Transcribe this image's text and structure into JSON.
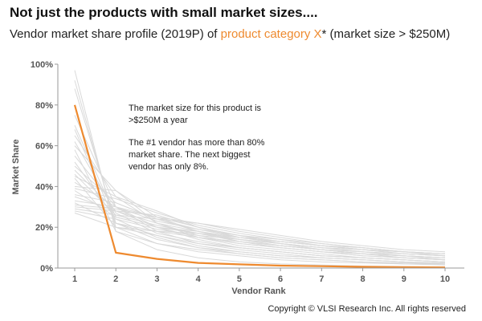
{
  "header": {
    "headline": "Not just the products with small market sizes....",
    "subtitle_pre": "Vendor market share profile (2019P) of ",
    "subtitle_highlight": "product category X",
    "subtitle_post": "* (market size > $250M)"
  },
  "colors": {
    "highlight": "#ee8a2f",
    "background_lines": "#d9d9d9",
    "axis": "#999999",
    "tick_text": "#555555"
  },
  "annotations": {
    "market_size_note": "The market size for this product is >$250M a year",
    "vendor_note": "The #1 vendor has more than 80% market share. The next biggest vendor has only 8%."
  },
  "footer": {
    "copyright": "Copyright © VLSI Research Inc. All rights reserved"
  },
  "chart_data": {
    "type": "line",
    "xlabel": "Vendor Rank",
    "ylabel": "Market Share",
    "x": [
      1,
      2,
      3,
      4,
      5,
      6,
      7,
      8,
      9,
      10
    ],
    "x_tick_labels": [
      "1",
      "2",
      "3",
      "4",
      "5",
      "6",
      "7",
      "8",
      "9",
      "10"
    ],
    "ylim": [
      0,
      100
    ],
    "y_ticks": [
      0,
      20,
      40,
      60,
      80,
      100
    ],
    "y_tick_labels": [
      "0%",
      "20%",
      "40%",
      "60%",
      "80%",
      "100%"
    ],
    "highlighted_series": {
      "values": [
        80,
        7.5,
        4.5,
        2.5,
        1.8,
        1.2,
        0.9,
        0.6,
        0.4,
        0.3
      ]
    },
    "background_series": [
      {
        "values": [
          97,
          18,
          9,
          5,
          3,
          2,
          1.5,
          1,
          0.8,
          0.5
        ]
      },
      {
        "values": [
          92,
          20,
          12,
          8,
          6,
          4,
          3,
          2.5,
          2,
          1.5
        ]
      },
      {
        "values": [
          88,
          22,
          14,
          10,
          7,
          5,
          4,
          3,
          2.5,
          2
        ]
      },
      {
        "values": [
          75,
          30,
          18,
          12,
          9,
          7,
          5,
          4,
          3,
          2.5
        ]
      },
      {
        "values": [
          70,
          25,
          20,
          14,
          10,
          8,
          6,
          5,
          4,
          3
        ]
      },
      {
        "values": [
          65,
          35,
          22,
          15,
          11,
          9,
          7,
          5,
          4,
          3
        ]
      },
      {
        "values": [
          60,
          38,
          25,
          18,
          13,
          10,
          8,
          6,
          5,
          4
        ]
      },
      {
        "values": [
          55,
          30,
          20,
          15,
          12,
          10,
          8,
          7,
          5,
          4
        ]
      },
      {
        "values": [
          50,
          32,
          24,
          18,
          14,
          11,
          9,
          7,
          6,
          5
        ]
      },
      {
        "values": [
          48,
          28,
          22,
          16,
          12,
          10,
          8,
          6,
          5,
          4
        ]
      },
      {
        "values": [
          45,
          35,
          28,
          20,
          15,
          12,
          9,
          7,
          5,
          4
        ]
      },
      {
        "values": [
          42,
          30,
          25,
          20,
          16,
          12,
          10,
          8,
          6,
          5
        ]
      },
      {
        "values": [
          40,
          38,
          22,
          18,
          14,
          11,
          9,
          7,
          6,
          4
        ]
      },
      {
        "values": [
          38,
          25,
          20,
          17,
          14,
          12,
          10,
          8,
          6,
          5
        ]
      },
      {
        "values": [
          36,
          32,
          24,
          19,
          15,
          13,
          11,
          9,
          7,
          6
        ]
      },
      {
        "values": [
          35,
          28,
          26,
          20,
          16,
          13,
          11,
          9,
          8,
          6
        ]
      },
      {
        "values": [
          33,
          30,
          23,
          19,
          16,
          14,
          12,
          10,
          8,
          7
        ]
      },
      {
        "values": [
          32,
          22,
          18,
          15,
          13,
          11,
          9,
          8,
          7,
          6
        ]
      },
      {
        "values": [
          30,
          28,
          20,
          18,
          15,
          13,
          11,
          9,
          8,
          7
        ]
      },
      {
        "values": [
          29,
          26,
          24,
          22,
          18,
          15,
          12,
          10,
          8,
          6
        ]
      },
      {
        "values": [
          28,
          24,
          19,
          16,
          14,
          12,
          10,
          9,
          8,
          7
        ]
      },
      {
        "values": [
          27,
          20,
          18,
          17,
          15,
          13,
          11,
          10,
          8,
          7
        ]
      },
      {
        "values": [
          44,
          20,
          16,
          12,
          10,
          8,
          6,
          5,
          4,
          3
        ]
      },
      {
        "values": [
          52,
          24,
          15,
          10,
          8,
          6,
          5,
          4,
          3,
          2
        ]
      },
      {
        "values": [
          58,
          18,
          12,
          9,
          7,
          5,
          4,
          3,
          2,
          2
        ]
      },
      {
        "values": [
          62,
          27,
          17,
          13,
          10,
          8,
          6,
          5,
          4,
          3
        ]
      },
      {
        "values": [
          68,
          22,
          16,
          11,
          8,
          6,
          5,
          4,
          3,
          2
        ]
      },
      {
        "values": [
          39,
          34,
          27,
          21,
          17,
          14,
          11,
          9,
          7,
          6
        ]
      },
      {
        "values": [
          46,
          26,
          21,
          17,
          13,
          11,
          9,
          7,
          6,
          5
        ]
      },
      {
        "values": [
          31,
          29,
          25,
          22,
          19,
          16,
          13,
          11,
          9,
          8
        ]
      }
    ]
  }
}
